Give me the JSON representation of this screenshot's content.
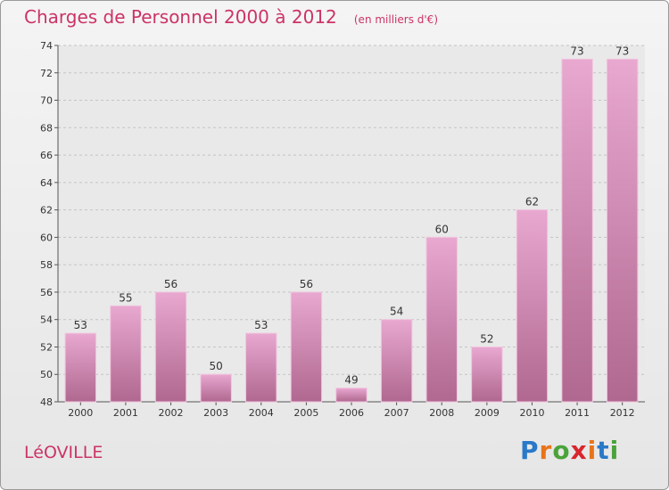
{
  "header": {
    "title": "Charges de Personnel 2000 à 2012",
    "subtitle": "(en milliers d'€)"
  },
  "footer": {
    "commune": "LéOVILLE",
    "logo": [
      "P",
      "r",
      "o",
      "x",
      "i",
      "t",
      "i"
    ],
    "logo_colors": [
      "#2a78c8",
      "#e8741a",
      "#4aa33a",
      "#d8262c",
      "#e8741a",
      "#2a78c8",
      "#4aa33a"
    ]
  },
  "chart_data": {
    "type": "bar",
    "title": "Charges de Personnel 2000 à 2012",
    "subtitle": "(en milliers d'€)",
    "categories": [
      "2000",
      "2001",
      "2002",
      "2003",
      "2004",
      "2005",
      "2006",
      "2007",
      "2008",
      "2009",
      "2010",
      "2011",
      "2012"
    ],
    "values": [
      53,
      55,
      56,
      50,
      53,
      56,
      49,
      54,
      60,
      52,
      62,
      73,
      73
    ],
    "xlabel": "",
    "ylabel": "",
    "ylim": [
      48,
      74
    ],
    "yticks": [
      48,
      50,
      52,
      54,
      56,
      58,
      60,
      62,
      64,
      66,
      68,
      70,
      72,
      74
    ],
    "grid": true,
    "bar_color_top": "#e8a8d0",
    "bar_color_bottom": "#b06890"
  }
}
